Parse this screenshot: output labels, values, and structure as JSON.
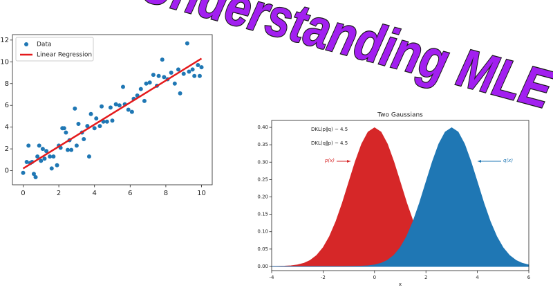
{
  "title": "Understanding MLE",
  "chart_data": [
    {
      "type": "scatter",
      "xlim": [
        -0.6,
        10.6
      ],
      "ylim": [
        -1.3,
        12.5
      ],
      "xticks": [
        0,
        2,
        4,
        6,
        8,
        10
      ],
      "yticks": [
        0,
        2,
        4,
        6,
        8,
        10,
        12
      ],
      "legend": "upper left",
      "series": [
        {
          "name": "Data",
          "color": "#1f77b4",
          "style": "marker",
          "x": [
            0,
            0.2,
            0.3,
            0.4,
            0.5,
            0.6,
            0.7,
            0.8,
            0.9,
            1.0,
            1.1,
            1.2,
            1.3,
            1.5,
            1.6,
            1.7,
            1.9,
            2.0,
            2.1,
            2.2,
            2.3,
            2.4,
            2.5,
            2.6,
            2.7,
            2.9,
            3.0,
            3.1,
            3.3,
            3.4,
            3.6,
            3.7,
            3.8,
            4.0,
            4.1,
            4.3,
            4.4,
            4.5,
            4.7,
            4.9,
            5.0,
            5.2,
            5.4,
            5.6,
            5.7,
            5.9,
            6.1,
            6.2,
            6.4,
            6.6,
            6.8,
            6.9,
            7.1,
            7.3,
            7.5,
            7.6,
            7.8,
            7.9,
            8.1,
            8.3,
            8.5,
            8.7,
            8.8,
            9.0,
            9.2,
            9.3,
            9.5,
            9.6,
            9.8,
            9.9,
            10
          ],
          "values": [
            -0.2,
            0.8,
            2.3,
            0.7,
            0.8,
            -0.3,
            -0.6,
            1.3,
            2.3,
            0.9,
            2.0,
            1.1,
            1.8,
            1.3,
            0.2,
            1.3,
            0.5,
            2.3,
            2.1,
            3.9,
            3.9,
            3.5,
            1.9,
            2.8,
            1.9,
            5.7,
            2.3,
            4.3,
            3.5,
            2.9,
            4.1,
            1.3,
            5.2,
            3.9,
            4.8,
            4.1,
            5.9,
            4.5,
            4.5,
            5.8,
            4.6,
            6.1,
            6.0,
            7.7,
            6.1,
            5.6,
            5.4,
            6.6,
            6.9,
            7.5,
            6.4,
            8.0,
            8.1,
            8.8,
            7.8,
            8.7,
            10.2,
            8.6,
            8.4,
            9.0,
            8.0,
            9.3,
            7.1,
            8.9,
            11.7,
            9.1,
            9.3,
            8.7,
            9.7,
            8.7,
            9.5
          ]
        },
        {
          "name": "Linear Regression",
          "color": "#e41a1c",
          "style": "line",
          "x": [
            0,
            10
          ],
          "values": [
            0.2,
            10.3
          ]
        }
      ]
    },
    {
      "type": "area",
      "title": "Two Gaussians",
      "x_label": "x",
      "xlim": [
        -4,
        6
      ],
      "ylim": [
        -0.012,
        0.42
      ],
      "xticks": [
        -4,
        -2,
        0,
        2,
        4,
        6
      ],
      "yticks": [
        {
          "value": 0,
          "label": "0.00"
        },
        {
          "value": 0.05,
          "label": "0.05"
        },
        {
          "value": 0.1,
          "label": "0.10"
        },
        {
          "value": 0.15,
          "label": "0.15"
        },
        {
          "value": 0.2,
          "label": "0.20"
        },
        {
          "value": 0.25,
          "label": "0.25"
        },
        {
          "value": 0.3,
          "label": "0.30"
        },
        {
          "value": 0.35,
          "label": "0.35"
        },
        {
          "value": 0.4,
          "label": "0.40"
        }
      ],
      "x": [
        -4,
        -3.75,
        -3.5,
        -3.25,
        -3,
        -2.75,
        -2.5,
        -2.25,
        -2,
        -1.75,
        -1.5,
        -1.25,
        -1,
        -0.75,
        -0.5,
        -0.25,
        0,
        0.25,
        0.5,
        0.75,
        1,
        1.25,
        1.5,
        1.75,
        2,
        2.25,
        2.5,
        2.75,
        3,
        3.25,
        3.5,
        3.75,
        4,
        4.25,
        4.5,
        4.75,
        5,
        5.25,
        5.5,
        5.75,
        6
      ],
      "series": [
        {
          "name": "p(x)",
          "color": "#d62728",
          "values": [
            0.0001,
            0.0004,
            0.0009,
            0.002,
            0.0044,
            0.0091,
            0.0175,
            0.0317,
            0.054,
            0.0863,
            0.1295,
            0.1826,
            0.242,
            0.3011,
            0.3521,
            0.3867,
            0.3989,
            0.3867,
            0.3521,
            0.3011,
            0.242,
            0.1826,
            0.1295,
            0.0863,
            0.054,
            0.0317,
            0.0175,
            0.0091,
            0.0044,
            0.002,
            0.0009,
            0.0004,
            0.0001,
            0,
            0,
            0,
            0,
            0,
            0,
            0,
            0
          ]
        },
        {
          "name": "q(x)",
          "color": "#1f77b4",
          "values": [
            0,
            0,
            0,
            0,
            0,
            0,
            0,
            0,
            0,
            0,
            0,
            0,
            0.0001,
            0.0004,
            0.0009,
            0.002,
            0.0044,
            0.0091,
            0.0175,
            0.0317,
            0.054,
            0.0863,
            0.1295,
            0.1826,
            0.242,
            0.3011,
            0.3521,
            0.3867,
            0.3989,
            0.3867,
            0.3521,
            0.3011,
            0.242,
            0.1826,
            0.1295,
            0.0863,
            0.054,
            0.0317,
            0.0175,
            0.0091,
            0.0044
          ]
        }
      ],
      "annotations": [
        {
          "text": "DKL(p‖q) ~ 4.5",
          "color": "#222222"
        },
        {
          "text": "DKL(q‖p) ~ 4.5",
          "color": "#222222"
        }
      ]
    }
  ]
}
